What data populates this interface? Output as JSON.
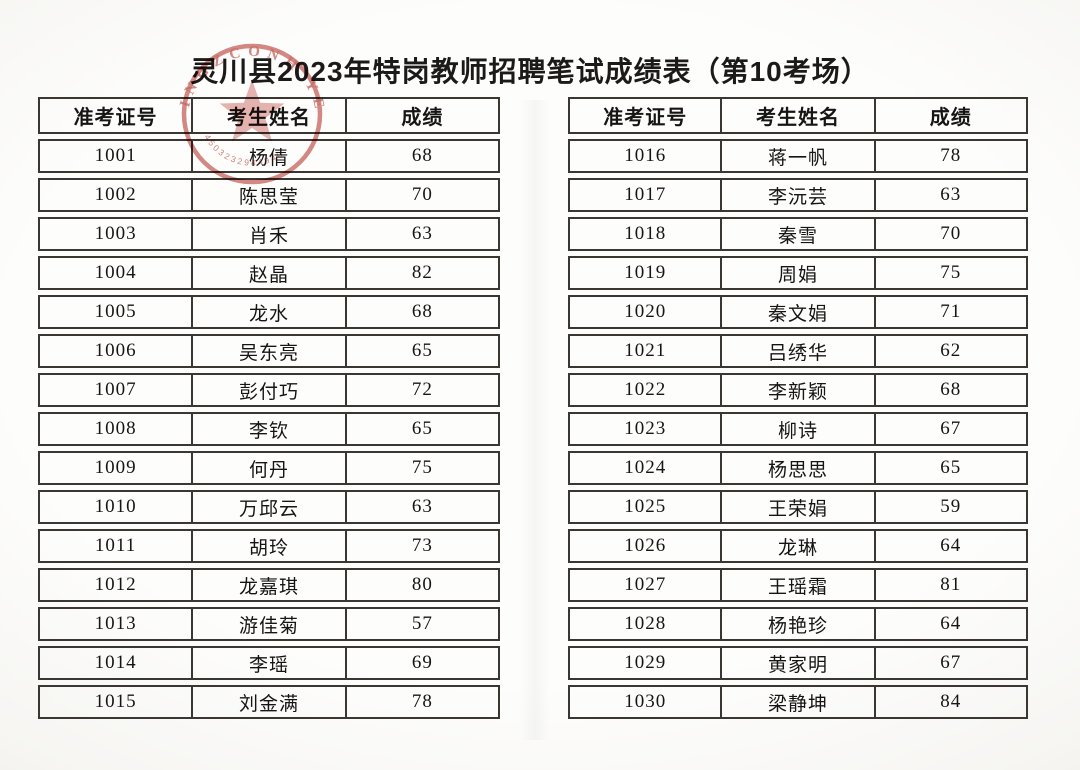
{
  "title": "灵川县2023年特岗教师招聘笔试成绩表（第10考场）",
  "columns": [
    "准考证号",
    "考生姓名",
    "成绩"
  ],
  "tables": [
    {
      "rows": [
        [
          "1001",
          "杨倩",
          "68"
        ],
        [
          "1002",
          "陈思莹",
          "70"
        ],
        [
          "1003",
          "肖禾",
          "63"
        ],
        [
          "1004",
          "赵晶",
          "82"
        ],
        [
          "1005",
          "龙水",
          "68"
        ],
        [
          "1006",
          "吴东亮",
          "65"
        ],
        [
          "1007",
          "彭付巧",
          "72"
        ],
        [
          "1008",
          "李钦",
          "65"
        ],
        [
          "1009",
          "何丹",
          "75"
        ],
        [
          "1010",
          "万邱云",
          "63"
        ],
        [
          "1011",
          "胡玲",
          "73"
        ],
        [
          "1012",
          "龙嘉琪",
          "80"
        ],
        [
          "1013",
          "游佳菊",
          "57"
        ],
        [
          "1014",
          "李瑶",
          "69"
        ],
        [
          "1015",
          "刘金满",
          "78"
        ]
      ]
    },
    {
      "rows": [
        [
          "1016",
          "蒋一帆",
          "78"
        ],
        [
          "1017",
          "李沅芸",
          "63"
        ],
        [
          "1018",
          "秦雪",
          "70"
        ],
        [
          "1019",
          "周娟",
          "75"
        ],
        [
          "1020",
          "秦文娟",
          "71"
        ],
        [
          "1021",
          "吕绣华",
          "62"
        ],
        [
          "1022",
          "李新颖",
          "68"
        ],
        [
          "1023",
          "柳诗",
          "67"
        ],
        [
          "1024",
          "杨思思",
          "65"
        ],
        [
          "1025",
          "王荣娟",
          "59"
        ],
        [
          "1026",
          "龙琳",
          "64"
        ],
        [
          "1027",
          "王瑶霜",
          "81"
        ],
        [
          "1028",
          "杨艳珍",
          "64"
        ],
        [
          "1029",
          "黄家明",
          "67"
        ],
        [
          "1030",
          "梁静坤",
          "84"
        ]
      ]
    }
  ],
  "stamp": {
    "outer_arc_text": "INGZCONH YEN",
    "digits_arc_text": "4503232944940",
    "color": "#c0504a"
  }
}
